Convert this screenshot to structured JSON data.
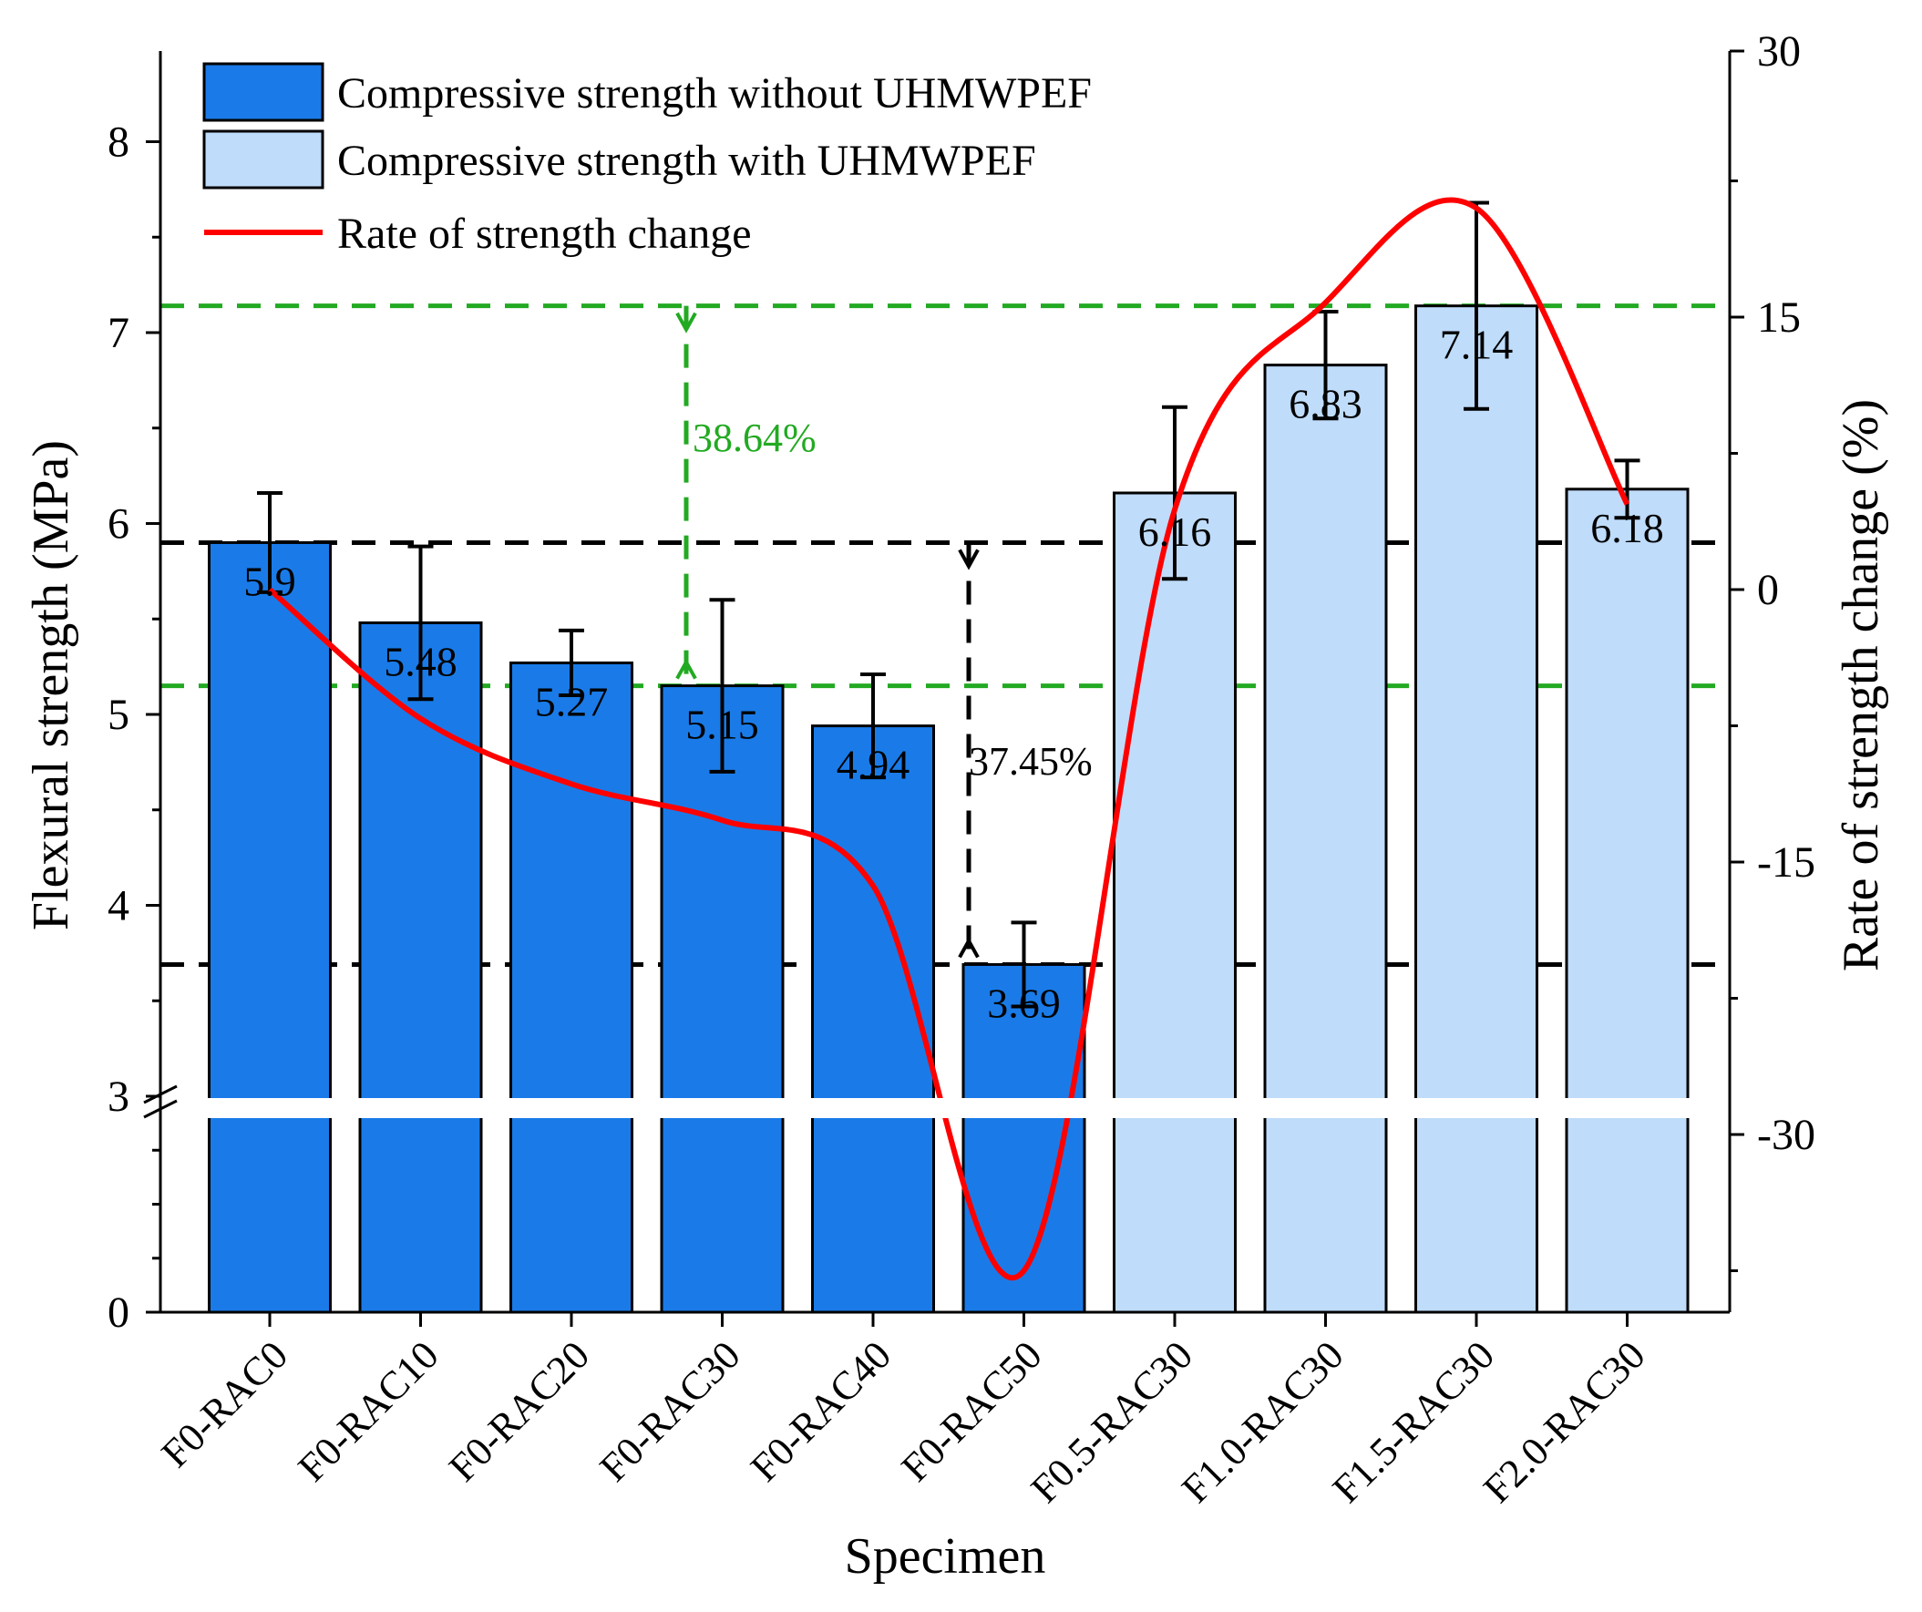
{
  "chart_data": {
    "type": "bar",
    "title": "",
    "xlabel": "Specimen",
    "ylabel": "Flexural strength (MPa)",
    "y2label": "Rate of strength change (%)",
    "ylim": [
      0,
      8.5
    ],
    "y_axis_break": [
      0,
      3
    ],
    "yticks": [
      "0",
      "3",
      "4",
      "5",
      "6",
      "7",
      "8"
    ],
    "y2lim": [
      -40,
      30
    ],
    "y2ticks": [
      "-30",
      "-15",
      "0",
      "15",
      "30"
    ],
    "categories": [
      "F0-RAC0",
      "F0-RAC10",
      "F0-RAC20",
      "F0-RAC30",
      "F0-RAC40",
      "F0-RAC50",
      "F0.5-RAC30",
      "F1.0-RAC30",
      "F1.5-RAC30",
      "F2.0-RAC30"
    ],
    "series": [
      {
        "name": "Compressive strength without UHMWPEF",
        "color": "#1a7be8",
        "values": [
          5.9,
          5.48,
          5.27,
          5.15,
          4.94,
          3.69,
          null,
          null,
          null,
          null
        ],
        "labels": [
          "5.9",
          "5.48",
          "5.27",
          "5.15",
          "4.94",
          "3.69",
          "",
          "",
          "",
          ""
        ],
        "errors": [
          0.26,
          0.4,
          0.17,
          0.45,
          0.27,
          0.22,
          null,
          null,
          null,
          null
        ]
      },
      {
        "name": "Compressive strength with UHMWPEF",
        "color": "#bfdcfa",
        "values": [
          null,
          null,
          null,
          null,
          null,
          null,
          6.16,
          6.83,
          7.14,
          6.18
        ],
        "labels": [
          "",
          "",
          "",
          "",
          "",
          "",
          "6.16",
          "6.83",
          "7.14",
          "6.18"
        ],
        "errors": [
          null,
          null,
          null,
          null,
          null,
          null,
          0.45,
          0.28,
          0.54,
          0.15
        ]
      },
      {
        "name": "Rate of strength change",
        "color": "#ff0000",
        "type": "line",
        "axis": "right",
        "values": [
          0,
          -7.1,
          -10.7,
          -12.7,
          -16.3,
          -37.5,
          4.4,
          15.8,
          21.0,
          4.7
        ]
      }
    ],
    "annotations": [
      {
        "text": "38.64%",
        "color": "#22aa22"
      },
      {
        "text": "37.45%",
        "color": "#000000"
      }
    ],
    "legend_position": "top-left"
  }
}
